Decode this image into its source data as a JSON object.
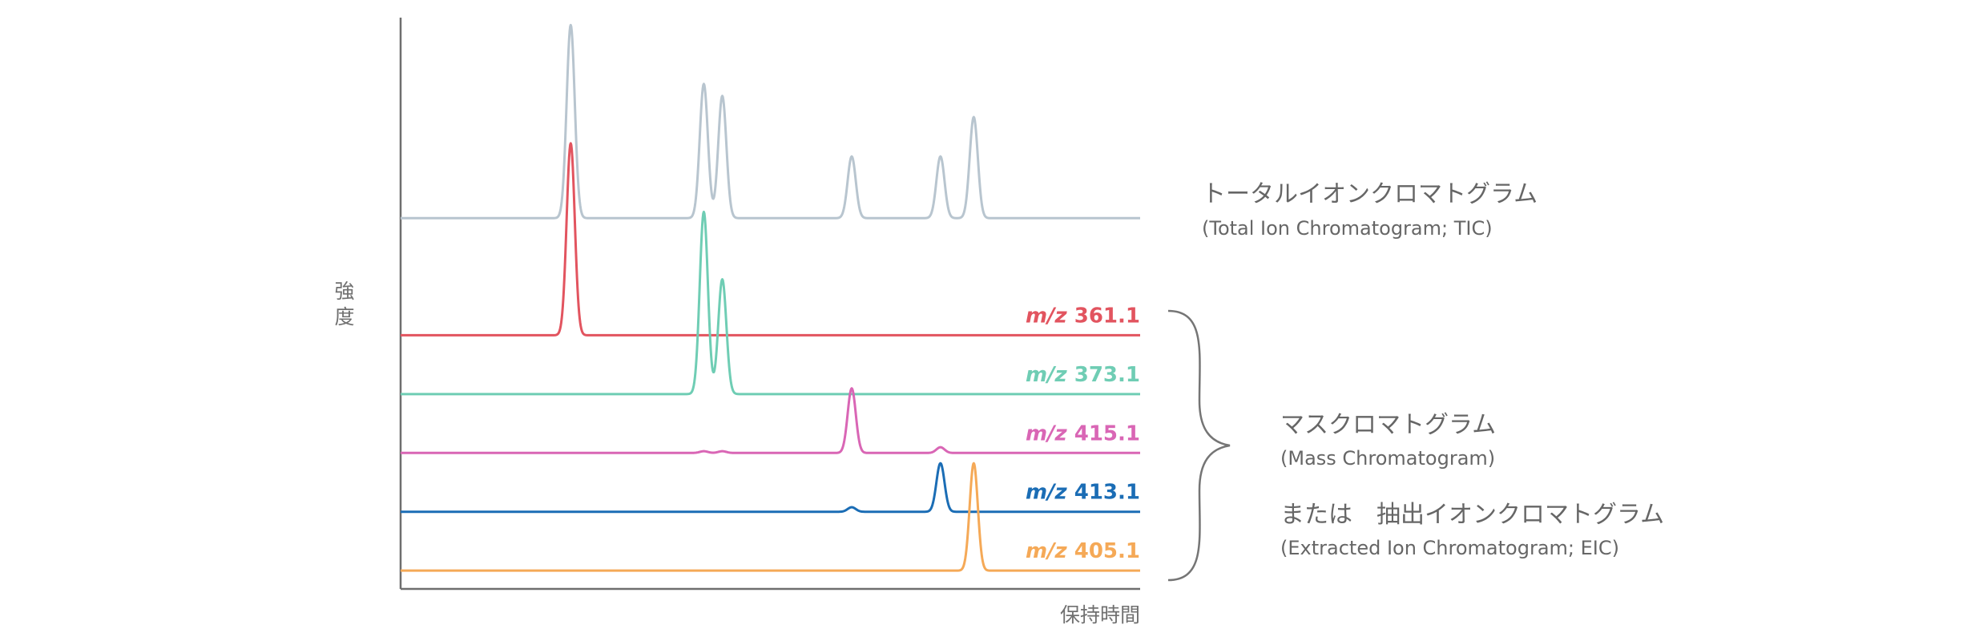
{
  "chart_data": {
    "type": "line",
    "title": "",
    "xlabel": "保持時間",
    "ylabel": "強度",
    "xlim": [
      0,
      100
    ],
    "ylim": [
      0,
      100
    ],
    "grid": false,
    "peak_width": 0.55,
    "series": [
      {
        "id": "tic",
        "color": "#b8c5cf",
        "baseline": 64.9,
        "peaks": [
          [
            23,
            33.8
          ],
          [
            41,
            23.5
          ],
          [
            43.5,
            21.4
          ],
          [
            61,
            10.8
          ],
          [
            73,
            10.8
          ],
          [
            77.5,
            17.7
          ]
        ]
      },
      {
        "id": "m361",
        "label_prefix": "m/z",
        "label_value": "361.1",
        "color": "#e2545f",
        "baseline": 44.4,
        "peaks": [
          [
            23,
            33.6
          ]
        ]
      },
      {
        "id": "m373",
        "label_prefix": "m/z",
        "label_value": "373.1",
        "color": "#6fcdb4",
        "baseline": 34.1,
        "peaks": [
          [
            41,
            31.9
          ],
          [
            43.5,
            20.1
          ]
        ]
      },
      {
        "id": "m415",
        "label_prefix": "m/z",
        "label_value": "415.1",
        "color": "#d966b5",
        "baseline": 23.8,
        "peaks": [
          [
            41,
            0.3
          ],
          [
            43.5,
            0.3
          ],
          [
            61,
            11.3
          ],
          [
            73,
            1.0
          ]
        ]
      },
      {
        "id": "m413",
        "label_prefix": "m/z",
        "label_value": "413.1",
        "color": "#1b6db5",
        "baseline": 13.5,
        "peaks": [
          [
            61,
            0.8
          ],
          [
            73,
            8.5
          ]
        ]
      },
      {
        "id": "m405",
        "label_prefix": "m/z",
        "label_value": "405.1",
        "color": "#f5a957",
        "baseline": 3.2,
        "peaks": [
          [
            77.5,
            18.8
          ]
        ]
      }
    ],
    "annotations": {
      "tic_title": "トータルイオンクロマトグラム",
      "tic_subtitle": "(Total Ion Chromatogram; TIC)",
      "mass_title": "マスクロマトグラム",
      "mass_subtitle": "(Mass Chromatogram)",
      "eic_title": "または　抽出イオンクロマトグラム",
      "eic_subtitle": "(Extracted Ion Chromatogram; EIC)"
    }
  }
}
